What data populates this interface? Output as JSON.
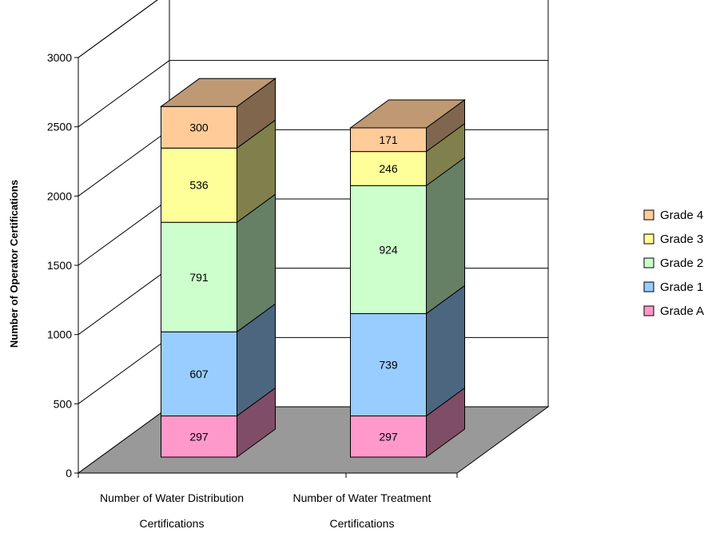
{
  "chart_data": {
    "type": "bar",
    "stacked": true,
    "three_d": true,
    "title": "",
    "xlabel": "",
    "ylabel": "Number of Operator Certifications",
    "ylim": [
      0,
      3000
    ],
    "yticks": [
      0,
      500,
      1000,
      1500,
      2000,
      2500,
      3000
    ],
    "grid": true,
    "legend_position": "right",
    "categories": [
      [
        "Number of Water Distribution",
        "Certifications"
      ],
      [
        "Number of Water Treatment",
        "Certifications"
      ]
    ],
    "series": [
      {
        "name": "Grade A",
        "color": "#FF99CC",
        "values": [
          297,
          297
        ]
      },
      {
        "name": "Grade 1",
        "color": "#99CCFF",
        "values": [
          607,
          739
        ]
      },
      {
        "name": "Grade 2",
        "color": "#CCFFCC",
        "values": [
          791,
          924
        ]
      },
      {
        "name": "Grade 3",
        "color": "#FFFF99",
        "values": [
          536,
          246
        ]
      },
      {
        "name": "Grade 4",
        "color": "#FFCC99",
        "values": [
          300,
          171
        ]
      }
    ],
    "floor_color": "#999999"
  }
}
